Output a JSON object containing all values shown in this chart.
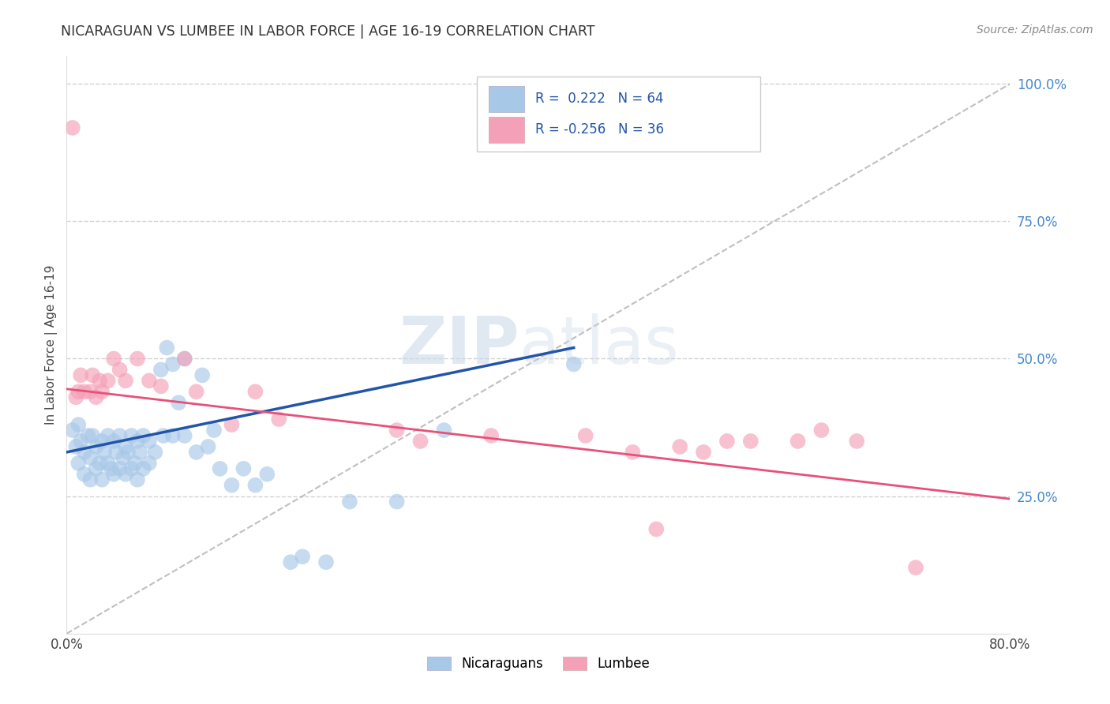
{
  "title": "NICARAGUAN VS LUMBEE IN LABOR FORCE | AGE 16-19 CORRELATION CHART",
  "source_text": "Source: ZipAtlas.com",
  "ylabel": "In Labor Force | Age 16-19",
  "xmin": 0.0,
  "xmax": 0.8,
  "ymin": 0.0,
  "ymax": 1.05,
  "color_blue": "#a8c8e8",
  "color_pink": "#f4a0b8",
  "color_blue_line": "#2255aa",
  "color_pink_line": "#e8507a",
  "color_dashed": "#aaaaaa",
  "watermark_zip": "ZIP",
  "watermark_atlas": "atlas",
  "blue_line_x": [
    0.0,
    0.43
  ],
  "blue_line_y": [
    0.33,
    0.52
  ],
  "pink_line_x": [
    0.0,
    0.8
  ],
  "pink_line_y": [
    0.445,
    0.245
  ],
  "diag_line_x": [
    0.0,
    0.8
  ],
  "diag_line_y": [
    0.0,
    1.0
  ],
  "nicaraguan_x": [
    0.005,
    0.008,
    0.01,
    0.01,
    0.012,
    0.015,
    0.015,
    0.018,
    0.02,
    0.02,
    0.022,
    0.025,
    0.025,
    0.028,
    0.03,
    0.03,
    0.032,
    0.035,
    0.035,
    0.038,
    0.04,
    0.04,
    0.042,
    0.045,
    0.045,
    0.048,
    0.05,
    0.05,
    0.052,
    0.055,
    0.055,
    0.058,
    0.06,
    0.06,
    0.062,
    0.065,
    0.065,
    0.07,
    0.07,
    0.075,
    0.08,
    0.082,
    0.085,
    0.09,
    0.09,
    0.095,
    0.1,
    0.1,
    0.11,
    0.115,
    0.12,
    0.125,
    0.13,
    0.14,
    0.15,
    0.16,
    0.17,
    0.19,
    0.2,
    0.22,
    0.24,
    0.28,
    0.32,
    0.43
  ],
  "nicaraguan_y": [
    0.37,
    0.34,
    0.38,
    0.31,
    0.35,
    0.33,
    0.29,
    0.36,
    0.32,
    0.28,
    0.36,
    0.3,
    0.34,
    0.31,
    0.35,
    0.28,
    0.33,
    0.31,
    0.36,
    0.3,
    0.35,
    0.29,
    0.33,
    0.3,
    0.36,
    0.32,
    0.34,
    0.29,
    0.33,
    0.3,
    0.36,
    0.31,
    0.35,
    0.28,
    0.33,
    0.3,
    0.36,
    0.31,
    0.35,
    0.33,
    0.48,
    0.36,
    0.52,
    0.49,
    0.36,
    0.42,
    0.5,
    0.36,
    0.33,
    0.47,
    0.34,
    0.37,
    0.3,
    0.27,
    0.3,
    0.27,
    0.29,
    0.13,
    0.14,
    0.13,
    0.24,
    0.24,
    0.37,
    0.49
  ],
  "lumbee_x": [
    0.005,
    0.008,
    0.01,
    0.012,
    0.015,
    0.02,
    0.022,
    0.025,
    0.028,
    0.03,
    0.035,
    0.04,
    0.045,
    0.05,
    0.06,
    0.07,
    0.08,
    0.1,
    0.11,
    0.14,
    0.16,
    0.18,
    0.28,
    0.3,
    0.36,
    0.44,
    0.48,
    0.5,
    0.52,
    0.54,
    0.56,
    0.58,
    0.62,
    0.64,
    0.67,
    0.72
  ],
  "lumbee_y": [
    0.92,
    0.43,
    0.44,
    0.47,
    0.44,
    0.44,
    0.47,
    0.43,
    0.46,
    0.44,
    0.46,
    0.5,
    0.48,
    0.46,
    0.5,
    0.46,
    0.45,
    0.5,
    0.44,
    0.38,
    0.44,
    0.39,
    0.37,
    0.35,
    0.36,
    0.36,
    0.33,
    0.19,
    0.34,
    0.33,
    0.35,
    0.35,
    0.35,
    0.37,
    0.35,
    0.12
  ]
}
